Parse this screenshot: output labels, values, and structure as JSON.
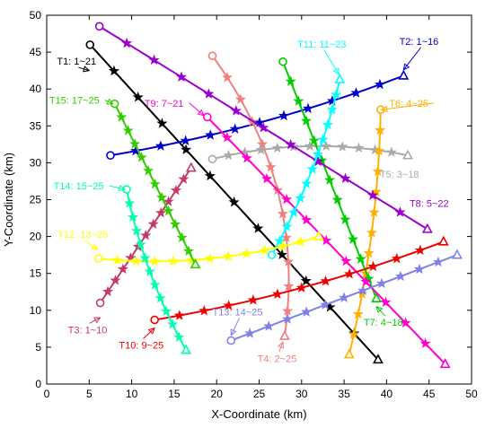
{
  "chart_data": {
    "type": "line",
    "title": "",
    "xlabel": "X-Coordinate (km)",
    "ylabel": "Y-Coordinate (km)",
    "xlim": [
      0,
      50
    ],
    "ylim": [
      0,
      50
    ],
    "xticks": [
      0,
      5,
      10,
      15,
      20,
      25,
      30,
      35,
      40,
      45,
      50
    ],
    "yticks": [
      0,
      5,
      10,
      15,
      20,
      25,
      30,
      35,
      40,
      45,
      50
    ],
    "grid": false,
    "box": true,
    "series": [
      {
        "name": "T1: 1~21",
        "color": "#000000",
        "points": [
          [
            5.1,
            46.0
          ],
          [
            39.0,
            3.3
          ]
        ],
        "curve": 0
      },
      {
        "name": "T2: 1~16",
        "color": "#0000CC",
        "points": [
          [
            7.5,
            31.0
          ],
          [
            42.0,
            41.8
          ]
        ],
        "curve": -1.0
      },
      {
        "name": "T3: 1~10",
        "color": "#C23B6A",
        "points": [
          [
            6.3,
            11.0
          ],
          [
            17.0,
            29.3
          ]
        ],
        "curve": 0
      },
      {
        "name": "T4: 2~25",
        "color": "#F08080",
        "points": [
          [
            19.5,
            44.5
          ],
          [
            28.0,
            6.5
          ]
        ],
        "curve": 3.5
      },
      {
        "name": "T5: 3~18",
        "color": "#AAAAAA",
        "points": [
          [
            19.5,
            30.5
          ],
          [
            42.5,
            31.0
          ]
        ],
        "curve": 1.5
      },
      {
        "name": "T6: 4~25",
        "color": "#FFB000",
        "points": [
          [
            39.3,
            37.2
          ],
          [
            35.6,
            4.0
          ]
        ],
        "curve": 0.8
      },
      {
        "name": "T7: 4~18",
        "color": "#00CC00",
        "points": [
          [
            27.8,
            43.7
          ],
          [
            38.8,
            11.6
          ]
        ],
        "curve": 0
      },
      {
        "name": "T8: 5~22",
        "color": "#9900CC",
        "points": [
          [
            6.2,
            48.5
          ],
          [
            44.8,
            21.0
          ]
        ],
        "curve": 0
      },
      {
        "name": "T9: 7~21",
        "color": "#FF00CC",
        "points": [
          [
            18.9,
            36.2
          ],
          [
            46.9,
            2.7
          ]
        ],
        "curve": 0
      },
      {
        "name": "T10: 9~25",
        "color": "#EE0000",
        "points": [
          [
            12.7,
            8.7
          ],
          [
            46.7,
            19.3
          ]
        ],
        "curve": -1.0
      },
      {
        "name": "T11: 11~23",
        "color": "#00FFFF",
        "points": [
          [
            26.5,
            17.5
          ],
          [
            34.5,
            41.3
          ]
        ],
        "curve": -0.8
      },
      {
        "name": "T12: 13~25",
        "color": "#FFFF00",
        "points": [
          [
            6.1,
            17.0
          ],
          [
            32.0,
            20.0
          ]
        ],
        "curve": -1.5
      },
      {
        "name": "T13: 14~25",
        "color": "#8080E6",
        "points": [
          [
            21.7,
            5.9
          ],
          [
            48.3,
            17.5
          ]
        ],
        "curve": 0
      },
      {
        "name": "T14: 15~25",
        "color": "#00FFB0",
        "points": [
          [
            9.4,
            26.4
          ],
          [
            16.4,
            4.6
          ]
        ],
        "curve": -0.8
      },
      {
        "name": "T15: 17~25",
        "color": "#33CC00",
        "points": [
          [
            8.0,
            38.0
          ],
          [
            17.5,
            16.2
          ]
        ],
        "curve": 0
      }
    ],
    "annotations": [
      {
        "text": "T1: 1~21",
        "series": 0,
        "label_at": [
          1.2,
          43.3
        ],
        "arrow_to": [
          5.0,
          42.5
        ]
      },
      {
        "text": "T2: 1~16",
        "series": 1,
        "label_at": [
          41.5,
          46.0
        ],
        "arrow_to": [
          42.0,
          42.6
        ]
      },
      {
        "text": "T3: 1~10",
        "series": 2,
        "label_at": [
          2.5,
          6.9
        ],
        "arrow_to": [
          6.3,
          9.0
        ]
      },
      {
        "text": "T4: 2~25",
        "series": 3,
        "label_at": [
          24.8,
          3.0
        ],
        "arrow_to": [
          27.8,
          5.7
        ]
      },
      {
        "text": "T5: 3~18",
        "series": 4,
        "label_at": [
          39.2,
          28.0
        ],
        "arrow_to": null
      },
      {
        "text": "T6: 4~25",
        "series": 5,
        "label_at": [
          40.3,
          37.6
        ],
        "arrow_to": [
          39.4,
          37.2
        ]
      },
      {
        "text": "T7: 4~18",
        "series": 6,
        "label_at": [
          37.3,
          7.9
        ],
        "arrow_to": [
          38.8,
          10.5
        ]
      },
      {
        "text": "T8: 5~22",
        "series": 7,
        "label_at": [
          42.7,
          24.0
        ],
        "arrow_to": null
      },
      {
        "text": "T9: 7~21",
        "series": 8,
        "label_at": [
          11.5,
          37.6
        ],
        "arrow_to": [
          18.5,
          36.4
        ]
      },
      {
        "text": "T10: 9~25",
        "series": 9,
        "label_at": [
          8.5,
          4.8
        ],
        "arrow_to": [
          12.7,
          7.6
        ]
      },
      {
        "text": "T11: 11~23",
        "series": 10,
        "label_at": [
          29.5,
          45.6
        ],
        "arrow_to": [
          34.4,
          42.0
        ]
      },
      {
        "text": "T12: 13~25",
        "series": 11,
        "label_at": [
          1.3,
          19.8
        ],
        "arrow_to": [
          6.0,
          18.2
        ]
      },
      {
        "text": "T13: 14~25",
        "series": 12,
        "label_at": [
          19.5,
          9.3
        ],
        "arrow_to": [
          21.7,
          6.6
        ]
      },
      {
        "text": "T14: 15~25",
        "series": 13,
        "label_at": [
          0.8,
          26.4
        ],
        "arrow_to": [
          9.2,
          26.4
        ]
      },
      {
        "text": "T15: 17~25",
        "series": 14,
        "label_at": [
          0.3,
          38.0
        ],
        "arrow_to": [
          7.8,
          38.0
        ]
      }
    ]
  }
}
